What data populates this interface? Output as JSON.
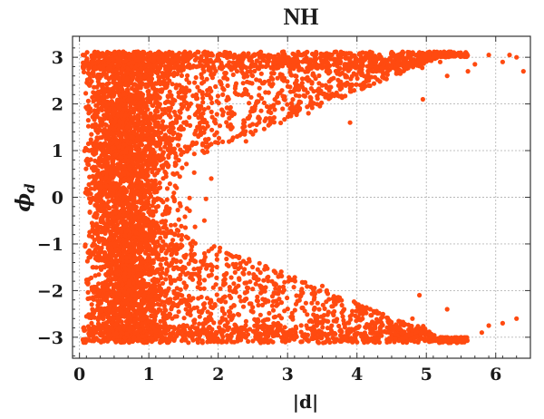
{
  "chart_data": {
    "type": "scatter",
    "title": "NH",
    "xlabel": "|d|",
    "ylabel_symbol": "ϕ",
    "ylabel_subscript": "d",
    "xlim": [
      -0.1,
      6.5
    ],
    "ylim": [
      -3.45,
      3.45
    ],
    "x_ticks": [
      0,
      1,
      2,
      3,
      4,
      5,
      6
    ],
    "x_tick_labels": [
      "0",
      "1",
      "2",
      "3",
      "4",
      "5",
      "6"
    ],
    "y_ticks": [
      -3,
      -2,
      -1,
      0,
      1,
      2,
      3
    ],
    "y_tick_labels": [
      "−3",
      "−2",
      "−1",
      "0",
      "1",
      "2",
      "3"
    ],
    "grid": true,
    "marker_color": "#ff4a10",
    "series": [
      {
        "points": [
          [
            0.62,
            2.3
          ],
          [
            1.4,
            0.2
          ],
          [
            0.2,
            -1.5
          ],
          [
            2.6,
            2.5
          ],
          [
            3.5,
            -2.7
          ],
          [
            4.1,
            2.6
          ],
          [
            4.8,
            -2.6
          ],
          [
            5.2,
            2.9
          ],
          [
            5.9,
            3.05
          ],
          [
            6.1,
            2.9
          ],
          [
            6.2,
            3.05
          ],
          [
            6.3,
            3.0
          ],
          [
            6.4,
            2.7
          ],
          [
            5.5,
            -3.0
          ],
          [
            5.8,
            -2.9
          ],
          [
            5.9,
            -2.75
          ],
          [
            6.1,
            -2.7
          ],
          [
            6.3,
            -2.6
          ],
          [
            5.6,
            2.7
          ],
          [
            5.7,
            2.85
          ],
          [
            3.3,
            1.8
          ],
          [
            3.5,
            -1.9
          ],
          [
            2.4,
            1.2
          ],
          [
            2.3,
            -1.3
          ],
          [
            3.9,
            1.6
          ],
          [
            1.9,
            0.4
          ],
          [
            1.8,
            -0.5
          ],
          [
            4.95,
            2.1
          ],
          [
            5.3,
            2.6
          ],
          [
            4.9,
            -2.1
          ],
          [
            5.3,
            -2.4
          ],
          [
            0.05,
            3.05
          ],
          [
            0.05,
            -3.05
          ],
          [
            1.5,
            3.08
          ],
          [
            2.5,
            -3.08
          ]
        ]
      }
    ]
  }
}
